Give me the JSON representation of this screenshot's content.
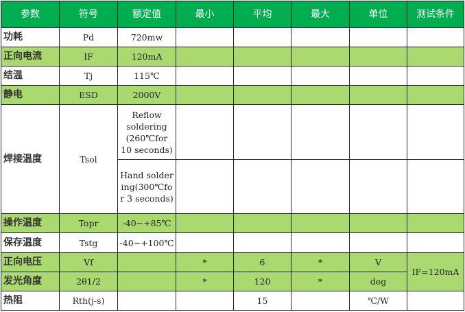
{
  "headers": [
    "参数",
    "符号",
    "额定值",
    "最小",
    "平均",
    "最大",
    "单位",
    "测试条件"
  ],
  "rows": [
    {
      "param": "功耗",
      "symbol": "Pd",
      "rated": "720mw"
    },
    {
      "param": "正向电流",
      "symbol": "IF",
      "rated": "120mA"
    },
    {
      "param": "结温",
      "symbol": "Tj",
      "rated": "115℃"
    },
    {
      "param": "静电",
      "symbol": "ESD",
      "rated": "2000V"
    },
    {
      "param": "焊接温度",
      "symbol": "Tsol",
      "rated": "Reflow soldering (260℃for 10 seconds)",
      "rated2": "Hand soldering(300℃for 3 seconds)"
    },
    {
      "param": "操作温度",
      "symbol": "Topr",
      "rated": "-40~+85℃"
    },
    {
      "param": "保存温度",
      "symbol": "Tstg",
      "rated": "-40~+100℃"
    },
    {
      "param": "正向电压",
      "symbol": "Vf",
      "rated": "",
      "min": "*",
      "avg": "6",
      "max": "*",
      "unit": "V",
      "cond": "IF=120mA"
    },
    {
      "param": "发光角度",
      "symbol": "2θ1/2",
      "rated": "",
      "min": "*",
      "avg": "120",
      "max": "*",
      "unit": "deg"
    },
    {
      "param": "热阻",
      "symbol": "Rth(j-s)",
      "rated": "",
      "min": "",
      "avg": "15",
      "max": "",
      "unit": "℃/W"
    }
  ],
  "colors": {
    "header": "#00AE50",
    "band": "#A9D96F"
  }
}
